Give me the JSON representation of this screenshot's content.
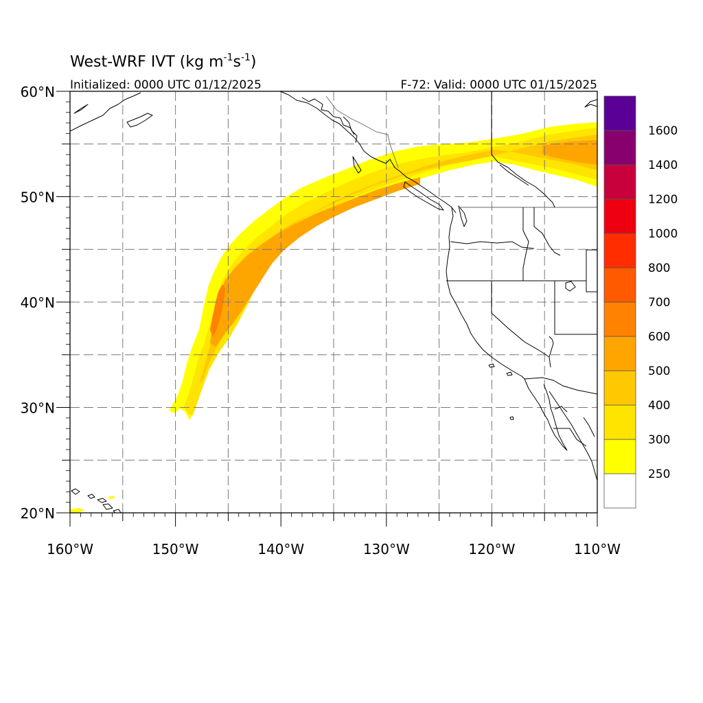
{
  "title": {
    "main": "West-WRF IVT (kg m",
    "sup1": "-1",
    "mid": "s",
    "sup2": "-1",
    "close": ")"
  },
  "init_label": "Initialized: 0000 UTC 01/12/2025",
  "valid_label": "F-72: Valid: 0000 UTC 01/15/2025",
  "chart_data": {
    "type": "map",
    "variable": "IVT",
    "units": "kg m-1 s-1",
    "lon_range": [
      -160,
      -110
    ],
    "lat_range": [
      20,
      60
    ],
    "x_ticks": [
      {
        "lon": -160,
        "label": "160°W"
      },
      {
        "lon": -150,
        "label": "150°W"
      },
      {
        "lon": -140,
        "label": "140°W"
      },
      {
        "lon": -130,
        "label": "130°W"
      },
      {
        "lon": -120,
        "label": "120°W"
      },
      {
        "lon": -110,
        "label": "110°W"
      }
    ],
    "y_ticks": [
      {
        "lat": 20,
        "label": "20°N"
      },
      {
        "lat": 30,
        "label": "30°N"
      },
      {
        "lat": 40,
        "label": "40°N"
      },
      {
        "lat": 50,
        "label": "50°N"
      },
      {
        "lat": 60,
        "label": "60°N"
      }
    ],
    "grid_lon": [
      -155,
      -150,
      -145,
      -140,
      -135,
      -130,
      -125,
      -120,
      -115
    ],
    "grid_lat": [
      25,
      30,
      35,
      40,
      45,
      50,
      55
    ],
    "colorbar": {
      "levels": [
        {
          "label": "250",
          "color": "#ffffff"
        },
        {
          "label": "300",
          "color": "#ffff00"
        },
        {
          "label": "400",
          "color": "#ffe400"
        },
        {
          "label": "500",
          "color": "#ffc800"
        },
        {
          "label": "600",
          "color": "#ffa500"
        },
        {
          "label": "700",
          "color": "#ff8200"
        },
        {
          "label": "800",
          "color": "#ff5a00"
        },
        {
          "label": "1000",
          "color": "#ff2d00"
        },
        {
          "label": "1200",
          "color": "#ee0011"
        },
        {
          "label": "1400",
          "color": "#c8003c"
        },
        {
          "label": "1600",
          "color": "#87006e"
        },
        {
          "label": "",
          "color": "#5a0096"
        }
      ]
    },
    "river_axis": [
      {
        "lon": -149,
        "lat": 29.5
      },
      {
        "lon": -148,
        "lat": 32
      },
      {
        "lon": -147,
        "lat": 35
      },
      {
        "lon": -146,
        "lat": 38
      },
      {
        "lon": -145,
        "lat": 41
      },
      {
        "lon": -142,
        "lat": 44.5
      },
      {
        "lon": -138,
        "lat": 47.5
      },
      {
        "lon": -133,
        "lat": 50
      },
      {
        "lon": -128,
        "lat": 52
      },
      {
        "lon": -122,
        "lat": 54
      },
      {
        "lon": -116,
        "lat": 55
      },
      {
        "lon": -110,
        "lat": 55
      }
    ]
  }
}
